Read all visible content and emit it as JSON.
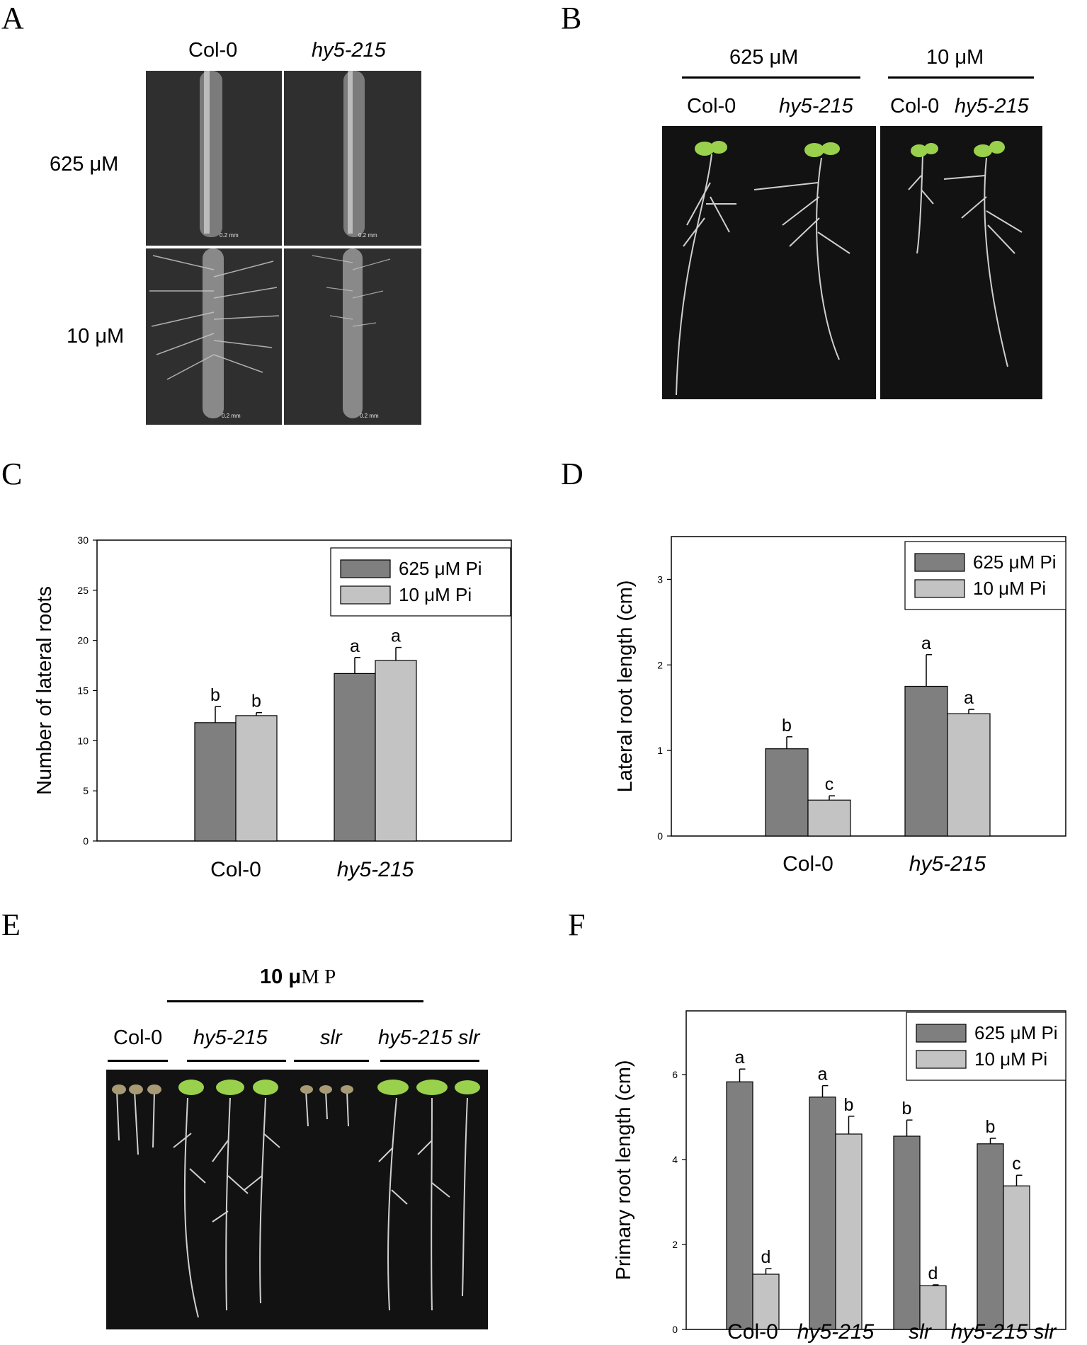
{
  "panels": {
    "A": {
      "letter": "A",
      "columns": [
        "Col-0",
        "hy5-215"
      ],
      "rows": [
        "625 μM",
        "10 μM"
      ],
      "scale_bars": [
        "0.2 mm",
        "0.2 mm",
        "0.2 mm",
        "0.2 mm"
      ]
    },
    "B": {
      "letter": "B",
      "groups": [
        "625 μM",
        "10 μM"
      ],
      "genotypes": [
        "Col-0",
        "hy5-215",
        "Col-0",
        "hy5-215"
      ]
    },
    "C": {
      "letter": "C"
    },
    "D": {
      "letter": "D"
    },
    "E": {
      "letter": "E",
      "heading_bold": "10 μ",
      "heading_rest": "M P",
      "genotypes": [
        "Col-0",
        "hy5-215",
        "slr",
        "hy5-215 slr"
      ]
    },
    "F": {
      "letter": "F"
    }
  },
  "colors": {
    "dark_bar": "#7f7f7f",
    "light_bar": "#c3c3c3",
    "photo_bg": "#2f2f2f"
  },
  "chart_data": [
    {
      "id": "C",
      "type": "bar",
      "ylabel": "Number of lateral roots",
      "xlabel": "",
      "categories": [
        "Col-0",
        "hy5-215"
      ],
      "italic_categories": [
        "hy5-215"
      ],
      "ylim": [
        0,
        30
      ],
      "yticks": [
        0,
        5,
        10,
        15,
        20,
        25,
        30
      ],
      "series": [
        {
          "name": "625 μM Pi",
          "values": [
            11.8,
            16.7
          ],
          "errors": [
            1.6,
            1.6
          ],
          "letters": [
            "b",
            "a"
          ],
          "color": "#7f7f7f"
        },
        {
          "name": "10 μM Pi",
          "values": [
            12.5,
            18.0
          ],
          "errors": [
            0.3,
            1.3
          ],
          "letters": [
            "b",
            "a"
          ],
          "color": "#c3c3c3"
        }
      ],
      "legend": "top-right",
      "grid": false
    },
    {
      "id": "D",
      "type": "bar",
      "ylabel": "Lateral root length (cm)",
      "xlabel": "",
      "categories": [
        "Col-0",
        "hy5-215"
      ],
      "italic_categories": [
        "hy5-215"
      ],
      "ylim": [
        0,
        3.5
      ],
      "yticks": [
        0,
        1,
        2,
        3
      ],
      "series": [
        {
          "name": "625 μM Pi",
          "values": [
            1.02,
            1.75
          ],
          "errors": [
            0.14,
            0.37
          ],
          "letters": [
            "b",
            "a"
          ],
          "color": "#7f7f7f"
        },
        {
          "name": "10 μM Pi",
          "values": [
            0.42,
            1.43
          ],
          "errors": [
            0.05,
            0.05
          ],
          "letters": [
            "c",
            "a"
          ],
          "color": "#c3c3c3"
        }
      ],
      "legend": "top-right",
      "grid": false
    },
    {
      "id": "F",
      "type": "bar",
      "ylabel": "Primary root length (cm)",
      "xlabel": "",
      "categories": [
        "Col-0",
        "hy5-215",
        "slr",
        "hy5-215 slr"
      ],
      "italic_categories": [
        "hy5-215",
        "slr",
        "hy5-215 slr"
      ],
      "ylim": [
        0,
        7.5
      ],
      "yticks": [
        0,
        2,
        4,
        6
      ],
      "series": [
        {
          "name": "625 μM Pi",
          "values": [
            5.83,
            5.47,
            4.55,
            4.37
          ],
          "errors": [
            0.3,
            0.27,
            0.38,
            0.13
          ],
          "letters": [
            "a",
            "a",
            "b",
            "b"
          ],
          "color": "#7f7f7f"
        },
        {
          "name": "10 μM Pi",
          "values": [
            1.3,
            4.6,
            1.03,
            3.38
          ],
          "errors": [
            0.13,
            0.42,
            0.02,
            0.25
          ],
          "letters": [
            "d",
            "b",
            "d",
            "c"
          ],
          "color": "#c3c3c3"
        }
      ],
      "legend": "top-right",
      "grid": false
    }
  ]
}
